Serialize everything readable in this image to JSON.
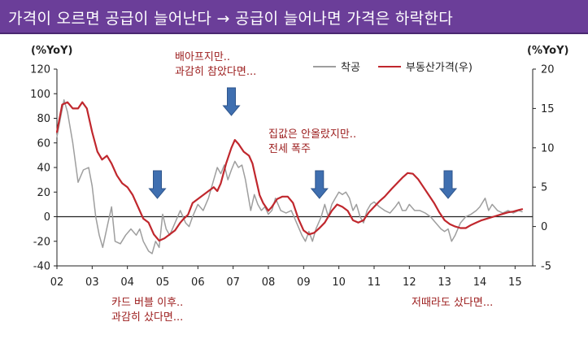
{
  "title": "가격이 오르면 공급이 늘어난다 → 공급이 늘어나면 가격은 하락한다",
  "colors": {
    "title_bg": "#6b3e99",
    "construction": "#9e9e9e",
    "price": "#c0272d",
    "arrow": "#3f6fb0",
    "annotation": "#9b1b1b"
  },
  "chart_data": {
    "type": "line",
    "title": "",
    "left_axis": {
      "label": "(%YoY)",
      "ylim": [
        -40,
        120
      ],
      "ticks": [
        -40,
        -20,
        0,
        20,
        40,
        60,
        80,
        100,
        120
      ]
    },
    "right_axis": {
      "label": "(%YoY)",
      "ylim": [
        -5,
        20
      ],
      "ticks": [
        -5,
        0,
        5,
        10,
        15,
        20
      ]
    },
    "x_axis": {
      "xlim": [
        2002,
        2015.5
      ],
      "tick_values": [
        2002,
        2003,
        2004,
        2005,
        2006,
        2007,
        2008,
        2009,
        2010,
        2011,
        2012,
        2013,
        2014,
        2015
      ],
      "tick_labels": [
        "02",
        "03",
        "04",
        "05",
        "06",
        "07",
        "08",
        "09",
        "10",
        "11",
        "12",
        "13",
        "14",
        "15"
      ]
    },
    "legend": {
      "position": "top-right"
    },
    "series": [
      {
        "name": "착공",
        "axis": "left",
        "color": "#9e9e9e",
        "points": [
          [
            2002.0,
            65
          ],
          [
            2002.1,
            80
          ],
          [
            2002.2,
            95
          ],
          [
            2002.3,
            85
          ],
          [
            2002.45,
            60
          ],
          [
            2002.6,
            28
          ],
          [
            2002.75,
            38
          ],
          [
            2002.9,
            40
          ],
          [
            2003.0,
            25
          ],
          [
            2003.1,
            0
          ],
          [
            2003.2,
            -15
          ],
          [
            2003.3,
            -25
          ],
          [
            2003.45,
            -5
          ],
          [
            2003.55,
            8
          ],
          [
            2003.65,
            -20
          ],
          [
            2003.8,
            -22
          ],
          [
            2003.95,
            -15
          ],
          [
            2004.1,
            -10
          ],
          [
            2004.25,
            -15
          ],
          [
            2004.35,
            -10
          ],
          [
            2004.45,
            -20
          ],
          [
            2004.6,
            -28
          ],
          [
            2004.7,
            -30
          ],
          [
            2004.8,
            -20
          ],
          [
            2004.9,
            -25
          ],
          [
            2005.0,
            2
          ],
          [
            2005.1,
            -10
          ],
          [
            2005.2,
            -15
          ],
          [
            2005.35,
            -5
          ],
          [
            2005.5,
            5
          ],
          [
            2005.65,
            -5
          ],
          [
            2005.75,
            -8
          ],
          [
            2005.85,
            0
          ],
          [
            2006.0,
            10
          ],
          [
            2006.15,
            5
          ],
          [
            2006.3,
            15
          ],
          [
            2006.45,
            30
          ],
          [
            2006.55,
            40
          ],
          [
            2006.65,
            35
          ],
          [
            2006.75,
            42
          ],
          [
            2006.85,
            30
          ],
          [
            2006.95,
            38
          ],
          [
            2007.05,
            45
          ],
          [
            2007.15,
            40
          ],
          [
            2007.25,
            42
          ],
          [
            2007.35,
            30
          ],
          [
            2007.5,
            5
          ],
          [
            2007.6,
            18
          ],
          [
            2007.7,
            10
          ],
          [
            2007.8,
            5
          ],
          [
            2007.9,
            8
          ],
          [
            2008.0,
            2
          ],
          [
            2008.1,
            5
          ],
          [
            2008.2,
            15
          ],
          [
            2008.35,
            5
          ],
          [
            2008.5,
            3
          ],
          [
            2008.65,
            5
          ],
          [
            2008.8,
            -5
          ],
          [
            2008.95,
            -15
          ],
          [
            2009.05,
            -20
          ],
          [
            2009.15,
            -12
          ],
          [
            2009.25,
            -20
          ],
          [
            2009.35,
            -10
          ],
          [
            2009.5,
            0
          ],
          [
            2009.6,
            10
          ],
          [
            2009.7,
            0
          ],
          [
            2009.8,
            10
          ],
          [
            2009.9,
            15
          ],
          [
            2010.0,
            20
          ],
          [
            2010.1,
            18
          ],
          [
            2010.2,
            20
          ],
          [
            2010.3,
            15
          ],
          [
            2010.4,
            5
          ],
          [
            2010.5,
            10
          ],
          [
            2010.6,
            0
          ],
          [
            2010.7,
            -5
          ],
          [
            2010.8,
            5
          ],
          [
            2010.9,
            10
          ],
          [
            2011.0,
            12
          ],
          [
            2011.15,
            8
          ],
          [
            2011.3,
            5
          ],
          [
            2011.45,
            3
          ],
          [
            2011.6,
            8
          ],
          [
            2011.7,
            12
          ],
          [
            2011.8,
            5
          ],
          [
            2011.9,
            5
          ],
          [
            2012.0,
            10
          ],
          [
            2012.15,
            5
          ],
          [
            2012.3,
            5
          ],
          [
            2012.45,
            3
          ],
          [
            2012.6,
            0
          ],
          [
            2012.75,
            -5
          ],
          [
            2012.9,
            -10
          ],
          [
            2013.0,
            -12
          ],
          [
            2013.1,
            -10
          ],
          [
            2013.2,
            -20
          ],
          [
            2013.3,
            -15
          ],
          [
            2013.45,
            -5
          ],
          [
            2013.6,
            0
          ],
          [
            2013.75,
            2
          ],
          [
            2013.9,
            5
          ],
          [
            2014.0,
            8
          ],
          [
            2014.15,
            15
          ],
          [
            2014.25,
            5
          ],
          [
            2014.35,
            10
          ],
          [
            2014.5,
            5
          ],
          [
            2014.65,
            3
          ],
          [
            2014.8,
            5
          ],
          [
            2014.95,
            3
          ],
          [
            2015.1,
            5
          ],
          [
            2015.2,
            4
          ]
        ]
      },
      {
        "name": "부동산가격(우)",
        "axis": "right",
        "color": "#c0272d",
        "points": [
          [
            2002.0,
            12
          ],
          [
            2002.15,
            15.5
          ],
          [
            2002.3,
            15.8
          ],
          [
            2002.45,
            15
          ],
          [
            2002.6,
            15
          ],
          [
            2002.72,
            15.8
          ],
          [
            2002.85,
            15
          ],
          [
            2003.0,
            12
          ],
          [
            2003.15,
            9.5
          ],
          [
            2003.28,
            8.5
          ],
          [
            2003.42,
            9
          ],
          [
            2003.55,
            8
          ],
          [
            2003.7,
            6.5
          ],
          [
            2003.85,
            5.5
          ],
          [
            2004.0,
            5
          ],
          [
            2004.15,
            4
          ],
          [
            2004.3,
            2.5
          ],
          [
            2004.45,
            1
          ],
          [
            2004.6,
            0.5
          ],
          [
            2004.75,
            -1
          ],
          [
            2004.9,
            -1.8
          ],
          [
            2005.05,
            -1.5
          ],
          [
            2005.2,
            -1
          ],
          [
            2005.35,
            -0.5
          ],
          [
            2005.5,
            0.5
          ],
          [
            2005.6,
            1
          ],
          [
            2005.72,
            1.5
          ],
          [
            2005.85,
            3
          ],
          [
            2006.0,
            3.5
          ],
          [
            2006.15,
            4
          ],
          [
            2006.3,
            4.5
          ],
          [
            2006.45,
            5
          ],
          [
            2006.55,
            4.5
          ],
          [
            2006.65,
            5.5
          ],
          [
            2006.8,
            8
          ],
          [
            2006.95,
            10
          ],
          [
            2007.05,
            11
          ],
          [
            2007.15,
            10.5
          ],
          [
            2007.3,
            9.5
          ],
          [
            2007.45,
            9
          ],
          [
            2007.55,
            8
          ],
          [
            2007.65,
            6
          ],
          [
            2007.75,
            4
          ],
          [
            2007.85,
            3
          ],
          [
            2008.0,
            2
          ],
          [
            2008.1,
            2.5
          ],
          [
            2008.25,
            3.5
          ],
          [
            2008.4,
            3.8
          ],
          [
            2008.55,
            3.8
          ],
          [
            2008.7,
            3
          ],
          [
            2008.85,
            1
          ],
          [
            2009.0,
            -0.5
          ],
          [
            2009.15,
            -1
          ],
          [
            2009.3,
            -0.8
          ],
          [
            2009.45,
            -0.2
          ],
          [
            2009.6,
            0.5
          ],
          [
            2009.8,
            2
          ],
          [
            2009.95,
            2.8
          ],
          [
            2010.1,
            2.5
          ],
          [
            2010.25,
            2
          ],
          [
            2010.4,
            0.8
          ],
          [
            2010.55,
            0.5
          ],
          [
            2010.7,
            0.8
          ],
          [
            2010.85,
            1.8
          ],
          [
            2011.0,
            2.5
          ],
          [
            2011.15,
            3.2
          ],
          [
            2011.3,
            3.8
          ],
          [
            2011.5,
            4.8
          ],
          [
            2011.65,
            5.5
          ],
          [
            2011.8,
            6.2
          ],
          [
            2011.95,
            6.8
          ],
          [
            2012.1,
            6.7
          ],
          [
            2012.25,
            6
          ],
          [
            2012.4,
            5
          ],
          [
            2012.55,
            4
          ],
          [
            2012.7,
            3
          ],
          [
            2012.85,
            1.8
          ],
          [
            2013.0,
            0.8
          ],
          [
            2013.15,
            0.3
          ],
          [
            2013.3,
            0
          ],
          [
            2013.45,
            -0.2
          ],
          [
            2013.6,
            -0.2
          ],
          [
            2013.75,
            0.2
          ],
          [
            2013.9,
            0.5
          ],
          [
            2014.05,
            0.8
          ],
          [
            2014.2,
            1
          ],
          [
            2014.35,
            1.2
          ],
          [
            2014.5,
            1.4
          ],
          [
            2014.65,
            1.6
          ],
          [
            2014.8,
            1.8
          ],
          [
            2014.95,
            1.9
          ],
          [
            2015.1,
            2.1
          ],
          [
            2015.2,
            2.2
          ]
        ]
      }
    ],
    "annotations": [
      {
        "lines": [
          "배아프지만..",
          "과감히 참았다면..."
        ]
      },
      {
        "lines": [
          "집값은 안올랐지만..",
          "전세 폭주"
        ]
      },
      {
        "lines": [
          "카드 버블 이후..",
          "과감히 샀다면..."
        ]
      },
      {
        "lines": [
          "저때라도 샀다면..."
        ]
      }
    ],
    "arrows_at_x": [
      2004.85,
      2006.95,
      2009.45,
      2013.1
    ]
  }
}
